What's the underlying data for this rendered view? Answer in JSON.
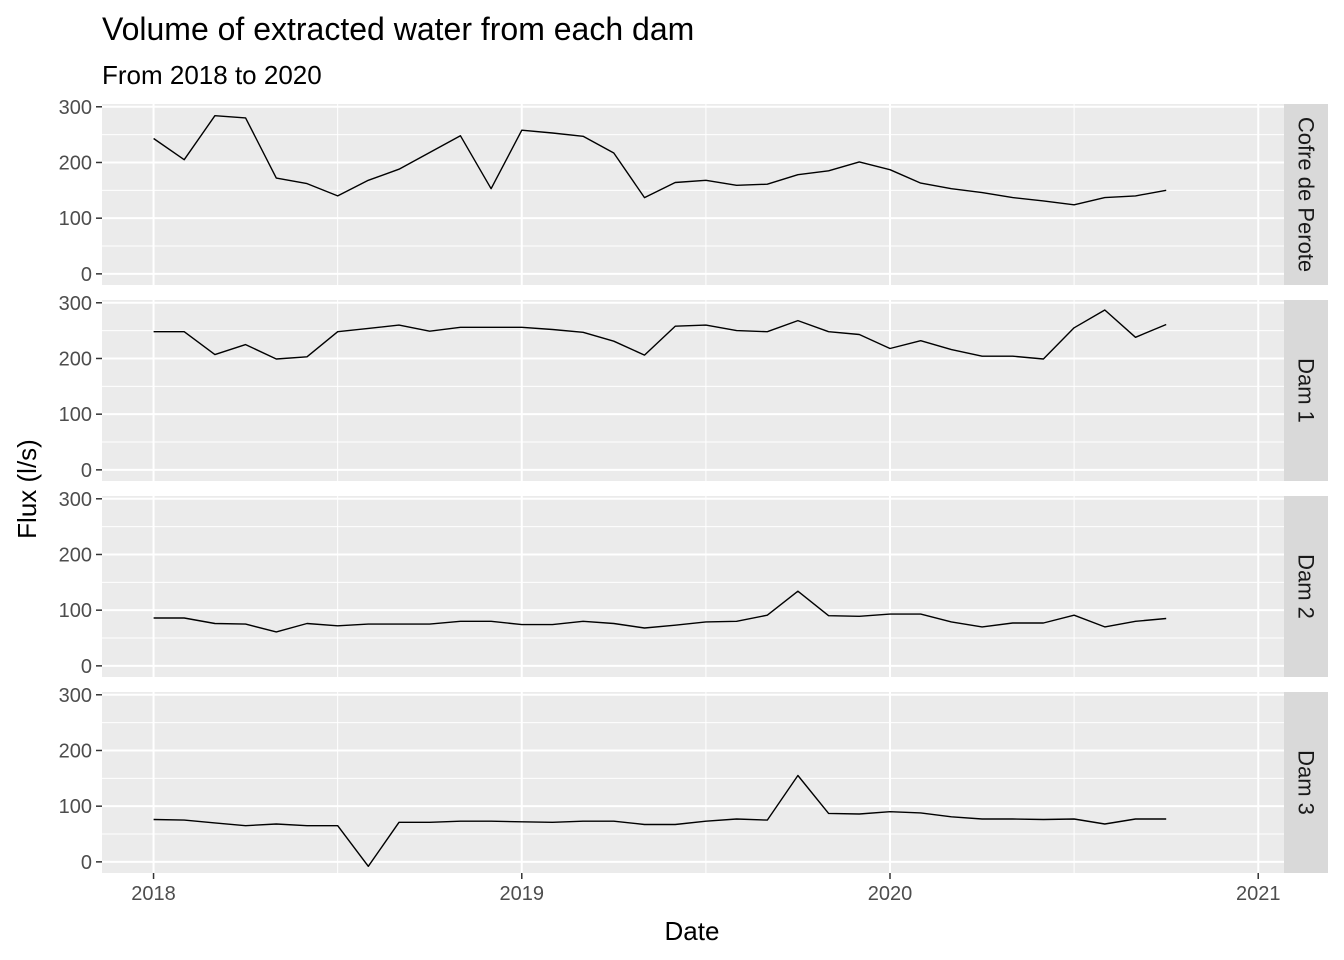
{
  "chart_data": {
    "type": "line",
    "title": "Volume of extracted water from each dam",
    "subtitle": "From 2018 to 2020",
    "xlabel": "Date",
    "ylabel": "Flux (l/s)",
    "x_ticks": [
      2018,
      2019,
      2020,
      2021
    ],
    "y_ticks": [
      0,
      100,
      200,
      300
    ],
    "xlim": [
      2017.86,
      2021.07
    ],
    "ylim": [
      -20,
      305
    ],
    "x": [
      "2018-01",
      "2018-02",
      "2018-03",
      "2018-04",
      "2018-05",
      "2018-06",
      "2018-07",
      "2018-08",
      "2018-09",
      "2018-10",
      "2018-11",
      "2018-12",
      "2019-01",
      "2019-02",
      "2019-03",
      "2019-04",
      "2019-05",
      "2019-06",
      "2019-07",
      "2019-08",
      "2019-09",
      "2019-10",
      "2019-11",
      "2019-12",
      "2020-01",
      "2020-02",
      "2020-03",
      "2020-04",
      "2020-05",
      "2020-06",
      "2020-07",
      "2020-08",
      "2020-09",
      "2020-10"
    ],
    "series": [
      {
        "name": "Cofre de Perote",
        "values": [
          243,
          205,
          284,
          280,
          172,
          162,
          140,
          168,
          188,
          218,
          248,
          153,
          258,
          253,
          247,
          217,
          137,
          164,
          168,
          159,
          161,
          178,
          185,
          201,
          187,
          163,
          153,
          146,
          137,
          131,
          124,
          137,
          140,
          150
        ]
      },
      {
        "name": "Dam 1",
        "values": [
          248,
          248,
          207,
          225,
          199,
          203,
          248,
          254,
          260,
          249,
          256,
          256,
          256,
          252,
          247,
          231,
          206,
          258,
          260,
          250,
          248,
          268,
          248,
          243,
          218,
          232,
          216,
          204,
          204,
          199,
          255,
          287,
          238,
          261
        ]
      },
      {
        "name": "Dam 2",
        "values": [
          86,
          86,
          76,
          75,
          61,
          76,
          72,
          75,
          75,
          75,
          80,
          80,
          74,
          74,
          80,
          76,
          68,
          73,
          79,
          80,
          91,
          134,
          90,
          89,
          93,
          93,
          79,
          70,
          77,
          77,
          91,
          70,
          80,
          85
        ]
      },
      {
        "name": "Dam 3",
        "values": [
          76,
          75,
          70,
          65,
          68,
          65,
          65,
          -8,
          71,
          71,
          73,
          73,
          72,
          71,
          73,
          73,
          67,
          67,
          73,
          77,
          75,
          155,
          87,
          86,
          90,
          88,
          81,
          77,
          77,
          76,
          77,
          68,
          77,
          77
        ]
      }
    ],
    "colors": {
      "panel_bg": "#ebebeb",
      "grid": "#ffffff",
      "strip_bg": "#d9d9d9",
      "line": "#000000",
      "tick": "#333333",
      "tick_text": "#4d4d4d"
    },
    "grid": true,
    "legend": "none"
  }
}
